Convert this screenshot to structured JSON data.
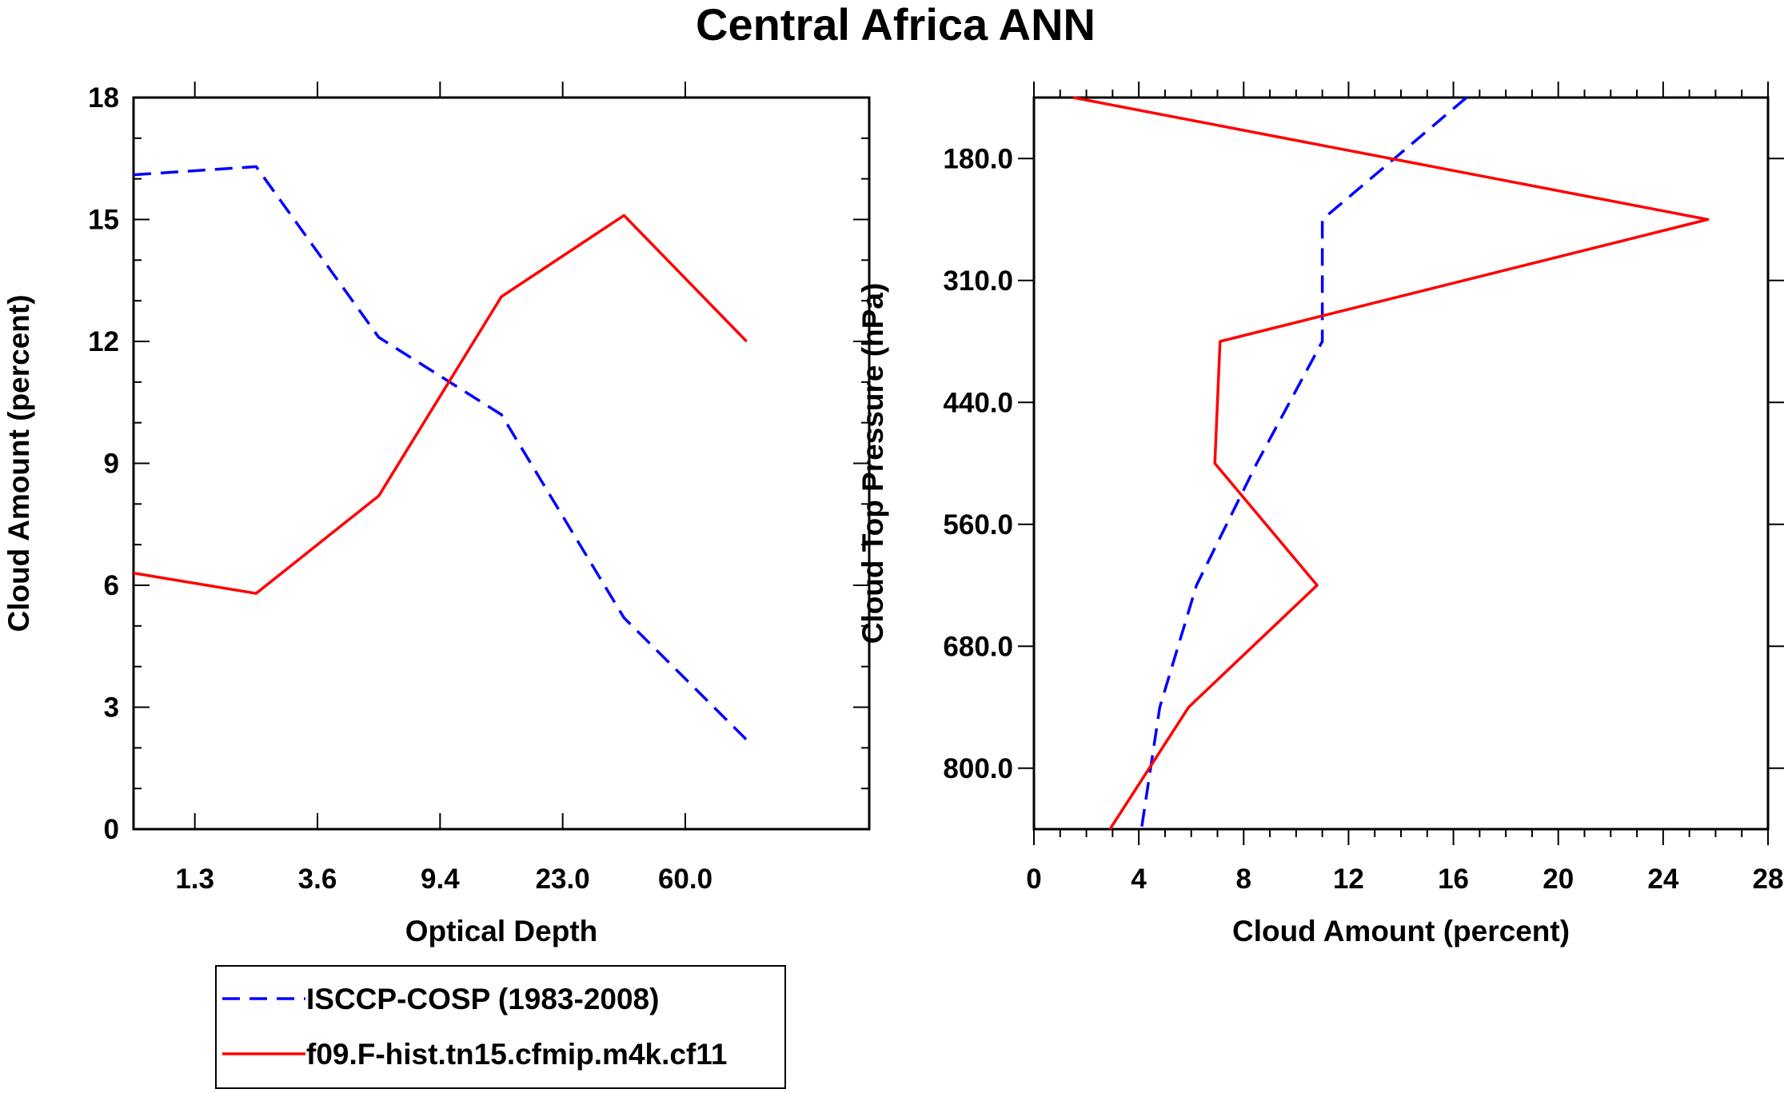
{
  "title": "Central Africa ANN",
  "chart_data": [
    {
      "type": "line",
      "xlabel": "Optical Depth",
      "ylabel": "Cloud Amount (percent)",
      "ylim": [
        0,
        18
      ],
      "y_ticks": [
        "0",
        "3",
        "6",
        "9",
        "12",
        "15",
        "18"
      ],
      "x_tick_labels": [
        "1.3",
        "3.6",
        "9.4",
        "23.0",
        "60.0"
      ],
      "x_categories": [
        0,
        1,
        2,
        3,
        4,
        5,
        6
      ],
      "series": [
        {
          "name": "ISCCP-COSP (1983-2008)",
          "style": "dashed",
          "color": "#0000ff",
          "values": [
            16.1,
            16.3,
            12.1,
            10.2,
            5.2,
            2.2
          ]
        },
        {
          "name": "f09.F-hist.tn15.cfmip.m4k.cf11",
          "style": "solid",
          "color": "#ff0000",
          "values": [
            6.3,
            5.8,
            8.2,
            13.1,
            15.1,
            12.0
          ]
        }
      ]
    },
    {
      "type": "line",
      "xlabel": "Cloud Amount (percent)",
      "ylabel": "Cloud Top Pressure (hPa)",
      "xlim": [
        0,
        28
      ],
      "x_ticks": [
        "0",
        "4",
        "8",
        "12",
        "16",
        "20",
        "24",
        "28"
      ],
      "y_tick_labels": [
        "180.0",
        "310.0",
        "440.0",
        "560.0",
        "680.0",
        "800.0"
      ],
      "pressure_levels": [
        1,
        2,
        3,
        4,
        5,
        6,
        7
      ],
      "series": [
        {
          "name": "ISCCP-COSP (1983-2008)",
          "style": "dashed",
          "color": "#0000ff",
          "values": [
            16.5,
            11.0,
            11.0,
            8.5,
            6.2,
            4.8,
            4.1
          ]
        },
        {
          "name": "f09.F-hist.tn15.cfmip.m4k.cf11",
          "style": "solid",
          "color": "#ff0000",
          "values": [
            1.5,
            25.7,
            7.1,
            6.9,
            10.8,
            5.9,
            2.9
          ]
        }
      ]
    }
  ],
  "legend": [
    {
      "label": "ISCCP-COSP (1983-2008)",
      "style": "dashed",
      "color": "#0000ff"
    },
    {
      "label": "f09.F-hist.tn15.cfmip.m4k.cf11",
      "style": "solid",
      "color": "#ff0000"
    }
  ]
}
